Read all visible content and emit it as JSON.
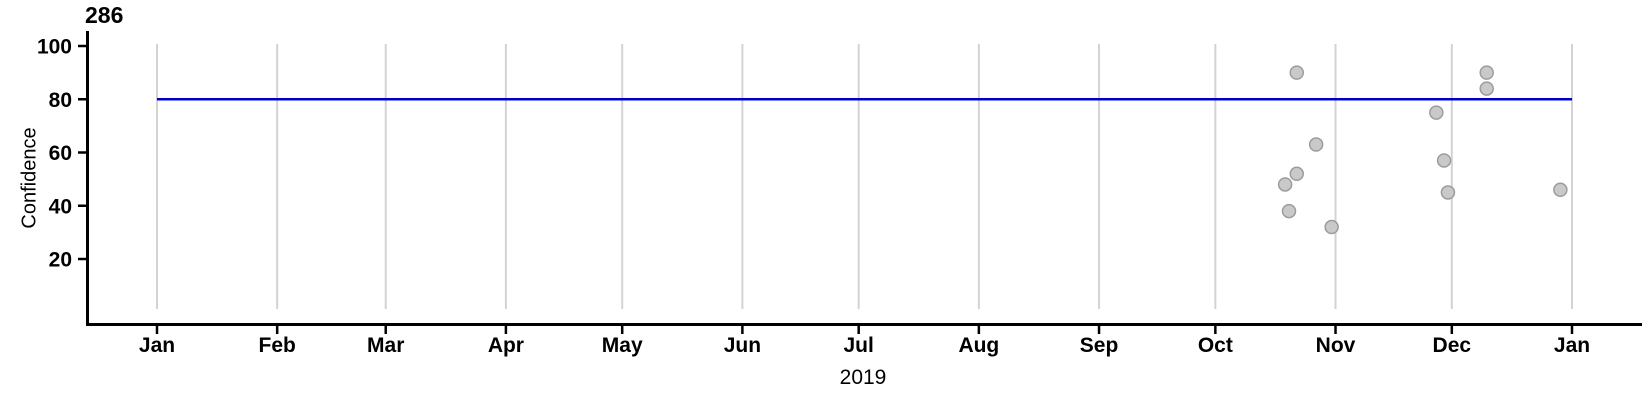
{
  "chart": {
    "title": "286",
    "xlabel": "2019",
    "ylabel": "Confidence"
  },
  "chart_data": {
    "type": "scatter",
    "title": "286",
    "xlabel": "2019",
    "ylabel": "Confidence",
    "x_axis": {
      "type": "date",
      "start": "2019-01-01",
      "end": "2020-01-01",
      "tick_labels": [
        "Jan",
        "Feb",
        "Mar",
        "Apr",
        "May",
        "Jun",
        "Jul",
        "Aug",
        "Sep",
        "Oct",
        "Nov",
        "Dec",
        "Jan"
      ],
      "grid": true
    },
    "y_axis": {
      "ticks": [
        20,
        40,
        60,
        80,
        100
      ],
      "tick_labels": [
        "20",
        "40",
        "60",
        "80",
        "100"
      ],
      "range_shown": [
        -5,
        105
      ],
      "grid": false
    },
    "reference_line": {
      "y": 80,
      "color": "#0000CD"
    },
    "points": [
      {
        "date": "2019-10-19",
        "confidence": 48
      },
      {
        "date": "2019-10-20",
        "confidence": 38
      },
      {
        "date": "2019-10-22",
        "confidence": 90
      },
      {
        "date": "2019-10-22",
        "confidence": 52
      },
      {
        "date": "2019-10-27",
        "confidence": 63
      },
      {
        "date": "2019-10-31",
        "confidence": 32
      },
      {
        "date": "2019-11-27",
        "confidence": 75
      },
      {
        "date": "2019-11-29",
        "confidence": 57
      },
      {
        "date": "2019-11-30",
        "confidence": 45
      },
      {
        "date": "2019-12-10",
        "confidence": 90
      },
      {
        "date": "2019-12-10",
        "confidence": 84
      },
      {
        "date": "2019-12-29",
        "confidence": 46
      }
    ],
    "point_style": {
      "fill": "#C9C9C9",
      "stroke": "#9C9C9C",
      "radius": 6.5
    },
    "colors": {
      "grid": "#D3D3D3",
      "axis": "#000000",
      "reference": "#0000CD",
      "text": "#000000"
    },
    "legend": "none"
  }
}
